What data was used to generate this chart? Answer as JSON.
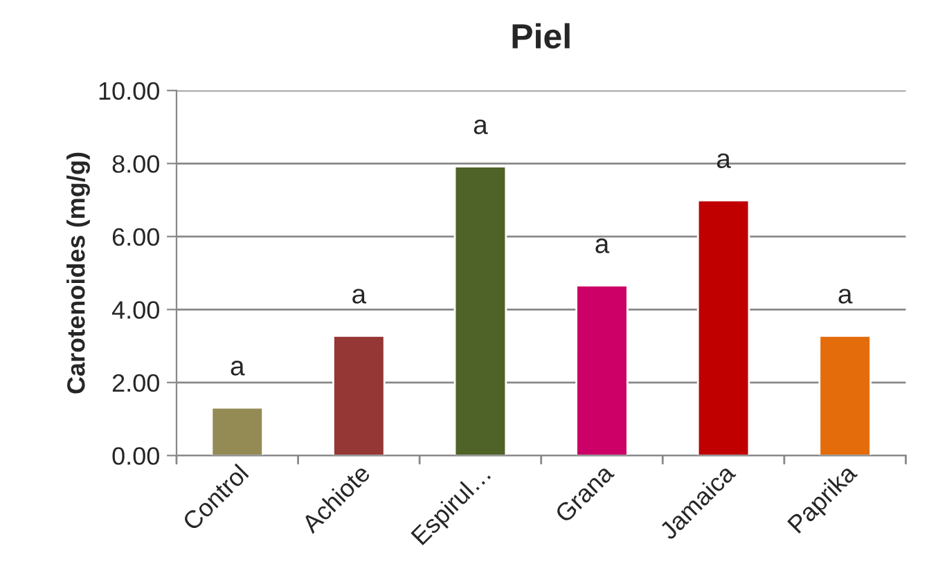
{
  "chart_data": {
    "type": "bar",
    "title": "Piel",
    "ylabel": "Carotenoides (mg/g)",
    "categories": [
      "Control",
      "Achiote",
      "Espirul…",
      "Grana",
      "Jamaica",
      "Paprika"
    ],
    "values": [
      1.31,
      3.28,
      7.92,
      4.66,
      6.99,
      3.28
    ],
    "colors": [
      "#948a54",
      "#953735",
      "#4f6228",
      "#cc0066",
      "#c00000",
      "#e46c0a"
    ],
    "ylim": [
      0,
      10
    ],
    "yticks": [
      {
        "value": 0,
        "label": "0.00"
      },
      {
        "value": 2,
        "label": "2.00"
      },
      {
        "value": 4,
        "label": "4.00"
      },
      {
        "value": 6,
        "label": "6.00"
      },
      {
        "value": 8,
        "label": "8.00"
      },
      {
        "value": 10,
        "label": "10.00"
      }
    ],
    "grid": "y",
    "legend": false,
    "annotations": [
      {
        "text": "a",
        "x": "Control",
        "y": 1.31
      },
      {
        "text": "a",
        "x": "Achiote",
        "y": 3.28
      },
      {
        "text": "a",
        "x": "Espirul…",
        "y": 7.92
      },
      {
        "text": "a",
        "x": "Grana",
        "y": 4.66
      },
      {
        "text": "a",
        "x": "Jamaica",
        "y": 6.99
      },
      {
        "text": "a",
        "x": "Paprika",
        "y": 3.28
      }
    ]
  }
}
